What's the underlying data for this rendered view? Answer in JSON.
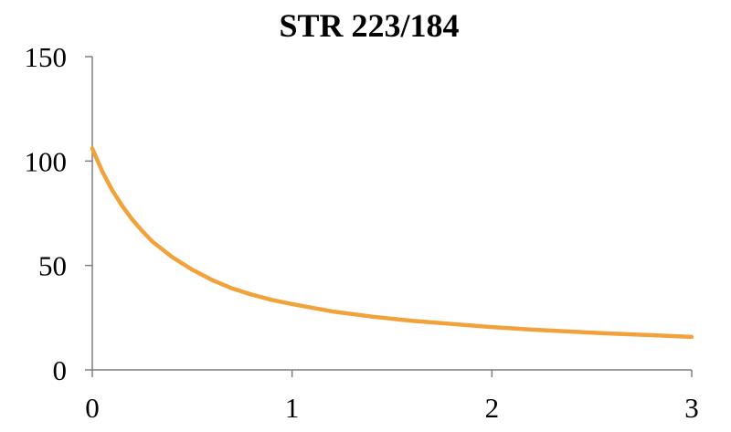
{
  "chart_data": {
    "type": "line",
    "title": "STR 223/184",
    "xlabel": "",
    "ylabel": "",
    "xlim": [
      0,
      3
    ],
    "ylim": [
      0,
      150
    ],
    "xticks": [
      0,
      1,
      2,
      3
    ],
    "yticks": [
      0,
      50,
      100,
      150
    ],
    "grid": false,
    "legend": "none",
    "series": [
      {
        "color": "#F2A23A",
        "x": [
          0,
          0.05,
          0.1,
          0.15,
          0.2,
          0.25,
          0.3,
          0.4,
          0.5,
          0.6,
          0.7,
          0.8,
          0.9,
          1.0,
          1.2,
          1.4,
          1.6,
          1.8,
          2.0,
          2.2,
          2.4,
          2.6,
          2.8,
          3.0
        ],
        "y": [
          106,
          95,
          86,
          78.5,
          72,
          66.5,
          61.5,
          54,
          48,
          43,
          39,
          36,
          33.5,
          31.5,
          28,
          25.5,
          23.5,
          22,
          20.5,
          19.3,
          18.3,
          17.4,
          16.6,
          15.8
        ]
      }
    ]
  },
  "colors": {
    "series": "#F2A23A",
    "axis": "#7f7f7f",
    "text": "#000000",
    "background": "#ffffff"
  }
}
